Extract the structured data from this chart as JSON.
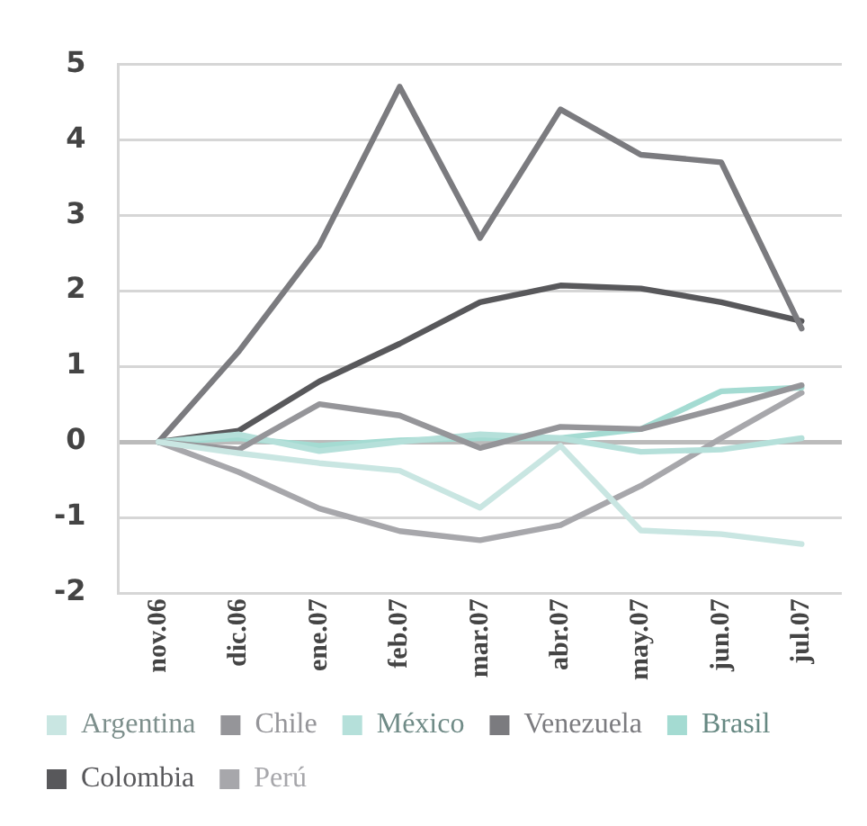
{
  "chart_data": {
    "type": "line",
    "categories": [
      "nov.06",
      "dic.06",
      "ene.07",
      "feb.07",
      "mar.07",
      "abr.07",
      "may.07",
      "jun.07",
      "jul.07"
    ],
    "series": [
      {
        "name": "Argentina",
        "color": "#c9e6e2",
        "values": [
          0,
          -0.15,
          -0.28,
          -0.38,
          -0.87,
          -0.05,
          -1.17,
          -1.22,
          -1.35
        ]
      },
      {
        "name": "Chile",
        "color": "#959599",
        "values": [
          0,
          -0.1,
          0.5,
          0.35,
          -0.08,
          0.2,
          0.17,
          0.45,
          0.75
        ]
      },
      {
        "name": "México",
        "color": "#b5e0da",
        "values": [
          0,
          0.1,
          -0.12,
          0,
          0.1,
          0.05,
          -0.13,
          -0.1,
          0.05
        ]
      },
      {
        "name": "Venezuela",
        "color": "#7b7b7f",
        "values": [
          0,
          1.2,
          2.6,
          4.7,
          2.7,
          4.4,
          3.8,
          3.7,
          1.5
        ]
      },
      {
        "name": "Brasil",
        "color": "#a4dbd2",
        "values": [
          0,
          0.05,
          -0.05,
          0.02,
          0.05,
          0.05,
          0.17,
          0.67,
          0.72
        ]
      },
      {
        "name": "Colombia",
        "color": "#58585b",
        "values": [
          0,
          0.15,
          0.8,
          1.3,
          1.85,
          2.07,
          2.03,
          1.85,
          1.6
        ]
      },
      {
        "name": "Perú",
        "color": "#a7a7ab",
        "values": [
          0,
          -0.4,
          -0.88,
          -1.18,
          -1.3,
          -1.1,
          -0.58,
          0.05,
          0.65
        ]
      }
    ],
    "ylim": [
      -2,
      5
    ],
    "yticks": [
      -2,
      -1,
      0,
      1,
      2,
      3,
      4,
      5
    ],
    "grid": "y",
    "legend": "bottom",
    "marker": "none",
    "line_style": "solid"
  }
}
